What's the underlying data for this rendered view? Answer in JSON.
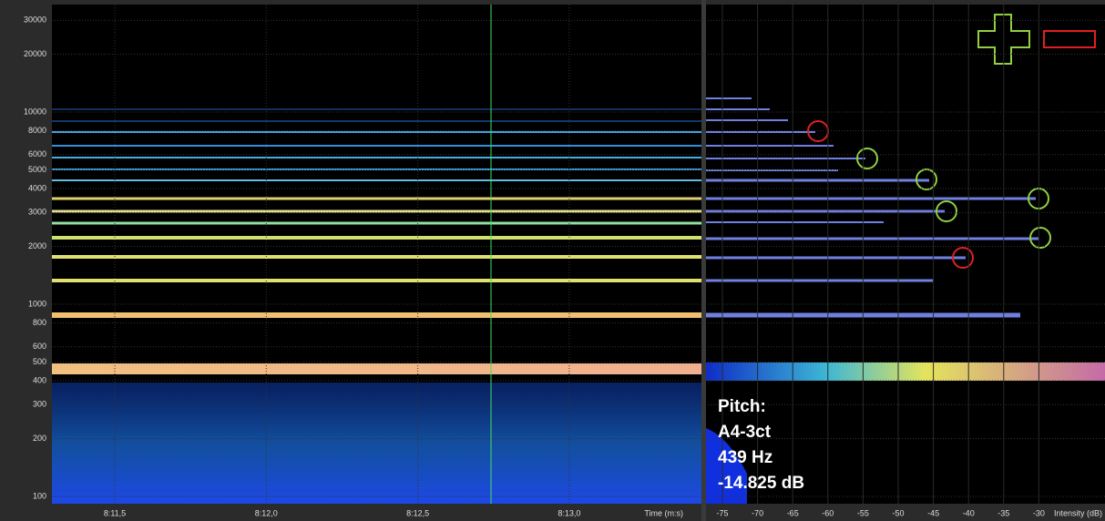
{
  "spectrogram": {
    "freq_ticks": [
      30000,
      20000,
      10000,
      8000,
      6000,
      5000,
      4000,
      3000,
      2000,
      1000,
      800,
      600,
      500,
      400,
      300,
      200,
      100
    ],
    "time_ticks": [
      "8:11,5",
      "8:12,0",
      "8:12,5",
      "8:13,0"
    ],
    "time_axis_label": "Time (m:s)"
  },
  "spectrum": {
    "intensity_ticks": [
      -75,
      -70,
      -65,
      -60,
      -55,
      -50,
      -45,
      -40,
      -35,
      -30
    ],
    "intensity_axis_label": "Intensity (dB)"
  },
  "pitch": {
    "label": "Pitch:",
    "note": "A4-3ct",
    "frequency": "439 Hz",
    "level": "-14.825 dB"
  }
}
